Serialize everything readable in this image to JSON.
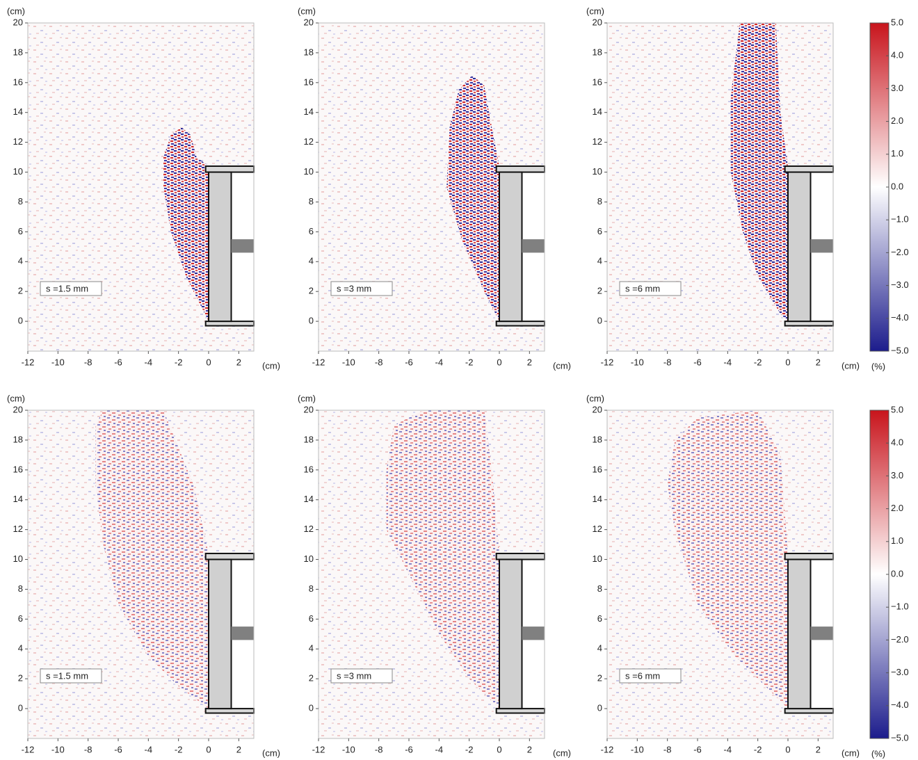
{
  "chart_data": [
    {
      "type": "heatmap",
      "annotation": "s =1.5 mm",
      "x_unit": "(cm)",
      "y_unit": "(cm)",
      "xlim": [
        -12,
        3
      ],
      "ylim": [
        -2,
        20
      ],
      "xticks": [
        -12,
        -10,
        -8,
        -6,
        -4,
        -2,
        0,
        2
      ],
      "yticks": [
        0,
        2,
        4,
        6,
        8,
        10,
        12,
        14,
        16,
        18,
        20
      ],
      "plume": {
        "x": [
          0,
          -0.5,
          -1.5,
          -2.5,
          -3,
          -3,
          -2.5,
          -1.8,
          -1.2,
          -0.8,
          0
        ],
        "y": [
          0,
          1,
          3,
          6,
          9,
          11,
          12.5,
          13,
          12.5,
          11,
          10.4
        ]
      }
    },
    {
      "type": "heatmap",
      "annotation": "s =3 mm",
      "x_unit": "(cm)",
      "y_unit": "(cm)",
      "xlim": [
        -12,
        3
      ],
      "ylim": [
        -2,
        20
      ],
      "xticks": [
        -12,
        -10,
        -8,
        -6,
        -4,
        -2,
        0,
        2
      ],
      "yticks": [
        0,
        2,
        4,
        6,
        8,
        10,
        12,
        14,
        16,
        18,
        20
      ],
      "plume": {
        "x": [
          0,
          -1,
          -2.5,
          -3.5,
          -3.3,
          -2.7,
          -1.8,
          -1,
          -0.5,
          0
        ],
        "y": [
          0,
          2,
          5.5,
          9,
          13,
          15.5,
          16.5,
          15.8,
          13,
          10.4
        ]
      }
    },
    {
      "type": "heatmap",
      "annotation": "s =6 mm",
      "x_unit": "(cm)",
      "y_unit": "(cm)",
      "xlim": [
        -12,
        3
      ],
      "ylim": [
        -2,
        20
      ],
      "xticks": [
        -12,
        -10,
        -8,
        -6,
        -4,
        -2,
        0,
        2
      ],
      "yticks": [
        0,
        2,
        4,
        6,
        8,
        10,
        12,
        14,
        16,
        18,
        20
      ],
      "plume": {
        "x": [
          0,
          -0.5,
          -2,
          -3,
          -3.8,
          -3.8,
          -3.2,
          -0.8,
          -0.5,
          0
        ],
        "y": [
          0,
          0.5,
          3,
          6,
          10,
          15,
          20,
          20,
          14,
          10.4
        ]
      }
    },
    {
      "type": "heatmap",
      "annotation": "s =1.5 mm",
      "x_unit": "(cm)",
      "y_unit": "(cm)",
      "xlim": [
        -12,
        3
      ],
      "ylim": [
        -2,
        20
      ],
      "xticks": [
        -12,
        -10,
        -8,
        -6,
        -4,
        -2,
        0,
        2
      ],
      "yticks": [
        0,
        2,
        4,
        6,
        8,
        10,
        12,
        14,
        16,
        18,
        20
      ],
      "plume": {
        "x": [
          0,
          -2,
          -4,
          -6,
          -7,
          -7.5,
          -7.5,
          -7,
          -3,
          -1,
          0
        ],
        "y": [
          0,
          1.5,
          3.5,
          7,
          11,
          15,
          19,
          20,
          20,
          15,
          10.4
        ]
      }
    },
    {
      "type": "heatmap",
      "annotation": "s =3 mm",
      "x_unit": "(cm)",
      "y_unit": "(cm)",
      "xlim": [
        -12,
        3
      ],
      "ylim": [
        -2,
        20
      ],
      "xticks": [
        -12,
        -10,
        -8,
        -6,
        -4,
        -2,
        0,
        2
      ],
      "yticks": [
        0,
        2,
        4,
        6,
        8,
        10,
        12,
        14,
        16,
        18,
        20
      ],
      "plume": {
        "x": [
          0,
          -2,
          -4,
          -6,
          -7.5,
          -7.5,
          -7,
          -5,
          -1,
          -0.5,
          0
        ],
        "y": [
          0,
          2,
          5,
          9,
          12,
          16,
          19,
          20,
          20,
          16,
          10.4
        ]
      }
    },
    {
      "type": "heatmap",
      "annotation": "s =6 mm",
      "x_unit": "(cm)",
      "y_unit": "(cm)",
      "xlim": [
        -12,
        3
      ],
      "ylim": [
        -2,
        20
      ],
      "xticks": [
        -12,
        -10,
        -8,
        -6,
        -4,
        -2,
        0,
        2
      ],
      "yticks": [
        0,
        2,
        4,
        6,
        8,
        10,
        12,
        14,
        16,
        18,
        20
      ],
      "plume": {
        "x": [
          0,
          -1.5,
          -3.5,
          -6,
          -7.5,
          -8,
          -7.5,
          -6,
          -2,
          -0.5,
          0
        ],
        "y": [
          0,
          1.5,
          3.5,
          7,
          12,
          15,
          18,
          19.5,
          20,
          17,
          10.4
        ]
      }
    },
    {
      "type": "colorbar",
      "unit": "(%)",
      "zlim": [
        -5,
        5
      ],
      "zticks": [
        {
          "value": 5,
          "label": "5.0"
        },
        {
          "value": 4,
          "label": "4.0"
        },
        {
          "value": 3,
          "label": "3.0"
        },
        {
          "value": 2,
          "label": "2.0"
        },
        {
          "value": 1,
          "label": "1.0"
        },
        {
          "value": 0,
          "label": "0.0"
        },
        {
          "value": -1,
          "label": "−1.0"
        },
        {
          "value": -2,
          "label": "−2.0"
        },
        {
          "value": -3,
          "label": "−3.0"
        },
        {
          "value": -4,
          "label": "−4.0"
        },
        {
          "value": -5,
          "label": "−5.0"
        }
      ]
    },
    {
      "type": "colorbar",
      "unit": "(%)",
      "zlim": [
        -5,
        5
      ],
      "zticks": [
        {
          "value": 5,
          "label": "5.0"
        },
        {
          "value": 4,
          "label": "4.0"
        },
        {
          "value": 3,
          "label": "3.0"
        },
        {
          "value": 2,
          "label": "2.0"
        },
        {
          "value": 1,
          "label": "1.0"
        },
        {
          "value": 0,
          "label": "0.0"
        },
        {
          "value": -1,
          "label": "−1.0"
        },
        {
          "value": -2,
          "label": "−2.0"
        },
        {
          "value": -3,
          "label": "−3.0"
        },
        {
          "value": -4,
          "label": "−4.0"
        },
        {
          "value": -5,
          "label": "−5.0"
        }
      ]
    }
  ]
}
